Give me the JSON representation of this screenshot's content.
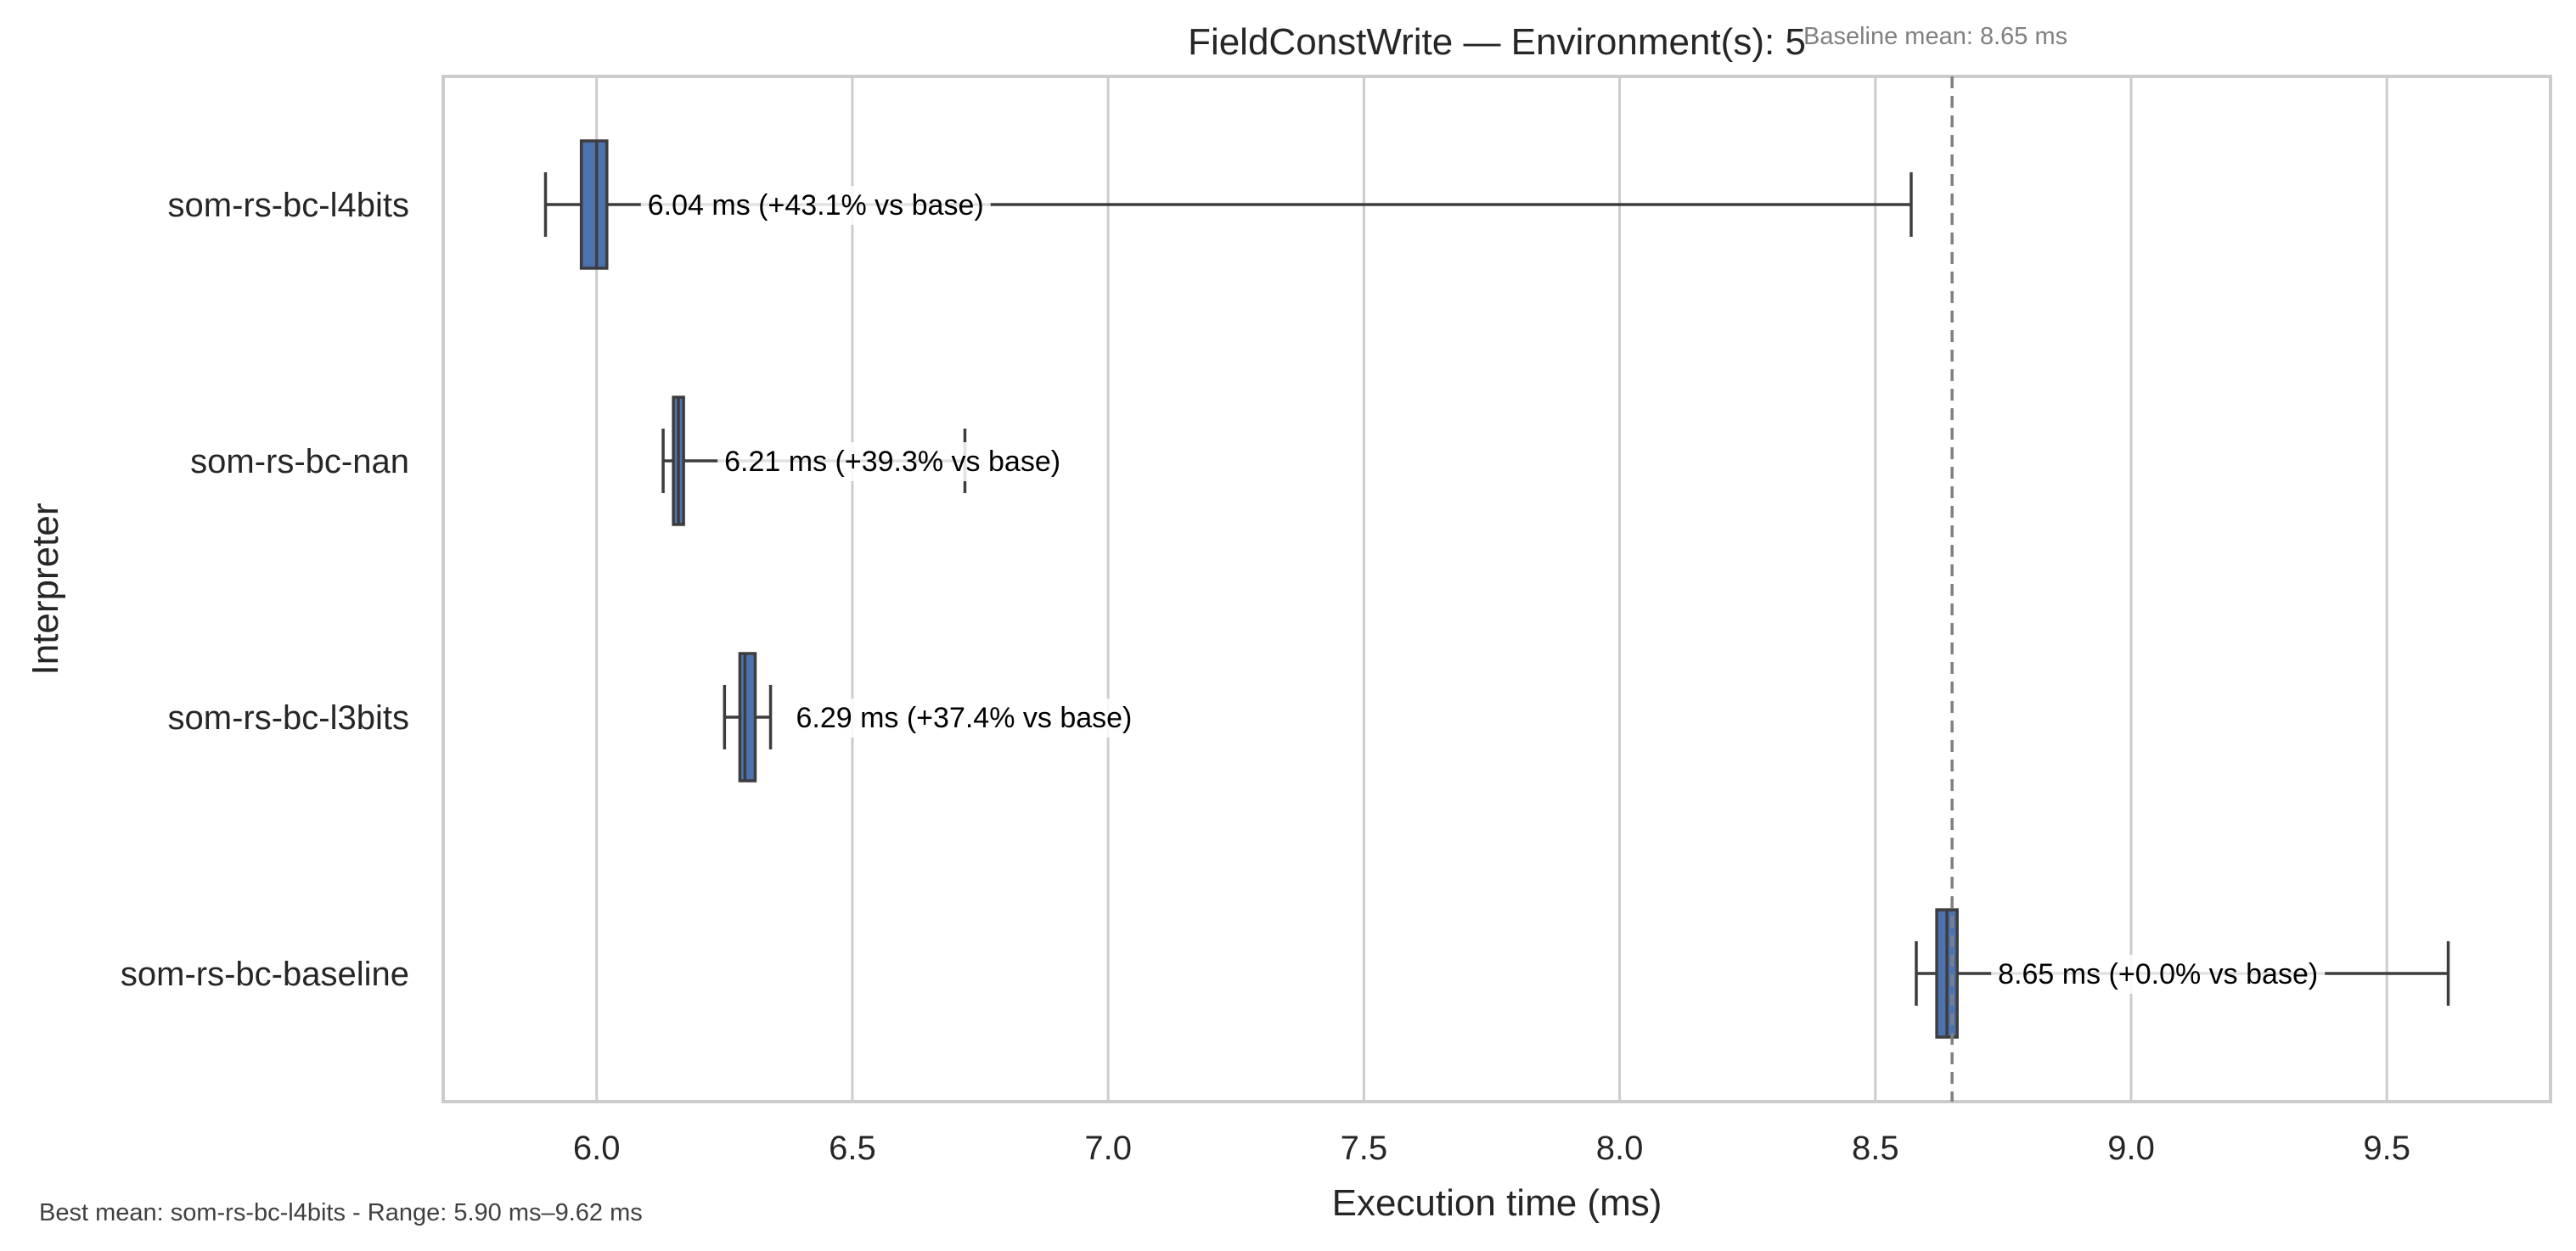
{
  "chart_data": {
    "type": "boxplot",
    "orientation": "horizontal",
    "title": "FieldConstWrite — Environment(s): 5",
    "xlabel": "Execution time (ms)",
    "ylabel": "Interpreter",
    "xlim": [
      5.7,
      9.82
    ],
    "xticks": [
      "6.0",
      "6.5",
      "7.0",
      "7.5",
      "8.0",
      "8.5",
      "9.0",
      "9.5"
    ],
    "grid": "vertical",
    "box_color": "#4c72b0",
    "baseline": {
      "value": 8.65,
      "label": "Baseline mean: 8.65 ms"
    },
    "footnote": "Best mean: som-rs-bc-l4bits - Range: 5.90 ms–9.62 ms",
    "series": [
      {
        "name": "som-rs-bc-l4bits",
        "min": 5.9,
        "q1": 5.97,
        "median": 6.0,
        "q3": 6.02,
        "max": 8.57,
        "annotation": "6.04 ms  (+43.1% vs base)"
      },
      {
        "name": "som-rs-bc-nan",
        "min": 6.13,
        "q1": 6.15,
        "median": 6.16,
        "q3": 6.17,
        "max": 6.72,
        "annotation": "6.21 ms  (+39.3% vs base)"
      },
      {
        "name": "som-rs-bc-l3bits",
        "min": 6.25,
        "q1": 6.28,
        "median": 6.29,
        "q3": 6.31,
        "max": 6.34,
        "annotation": "6.29 ms  (+37.4% vs base)"
      },
      {
        "name": "som-rs-bc-baseline",
        "min": 8.58,
        "q1": 8.62,
        "median": 8.64,
        "q3": 8.66,
        "max": 9.62,
        "annotation": "8.65 ms  (+0.0% vs base)"
      }
    ]
  }
}
